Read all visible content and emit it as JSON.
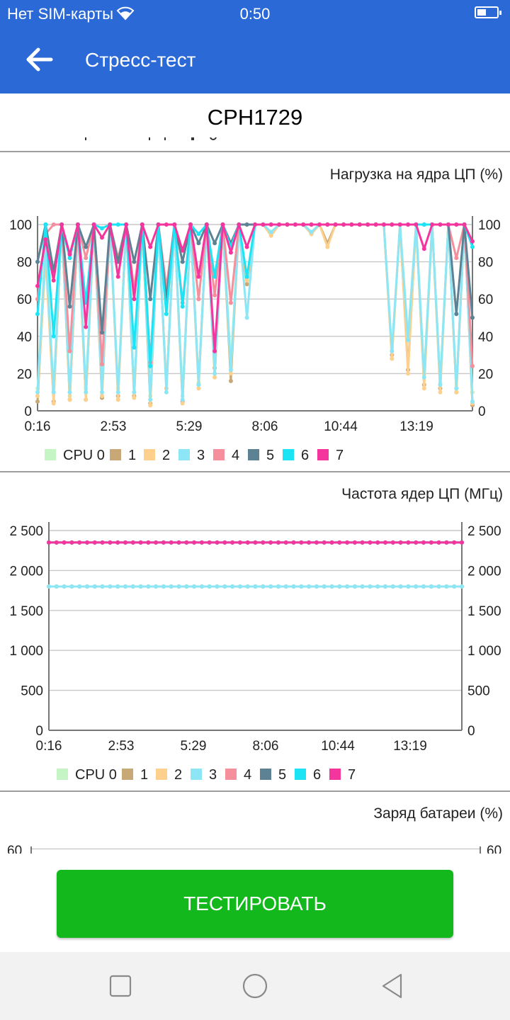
{
  "status_bar": {
    "carrier": "Нет SIM-карты",
    "time": "0:50"
  },
  "app_bar": {
    "title": "Стресс-тест"
  },
  "device": {
    "name": "CPH1729"
  },
  "legend_items": [
    "CPU 0",
    "1",
    "2",
    "3",
    "4",
    "5",
    "6",
    "7"
  ],
  "series_colors": [
    "#c5f5c5",
    "#c9a877",
    "#fdd08d",
    "#8de6f5",
    "#f58f9c",
    "#5c8294",
    "#1de4f5",
    "#f5359e"
  ],
  "charts": [
    {
      "title": "Нагрузка на ядра ЦП (%)",
      "chart_data": {
        "type": "line",
        "title": "Нагрузка на ядра ЦП (%)",
        "ylim": [
          0,
          100
        ],
        "y_ticks": [
          "0",
          "20",
          "40",
          "60",
          "80",
          "100"
        ],
        "x_ticks": [
          "0:16",
          "2:53",
          "5:29",
          "8:06",
          "10:44",
          "13:19"
        ],
        "series": [
          {
            "name": "CPU 0",
            "values": [
              12,
              90,
              10,
              100,
              8,
              100,
              12,
              100,
              10,
              100,
              12,
              100,
              10,
              100,
              8,
              100,
              12,
              100,
              8,
              100,
              15,
              100,
              18,
              100,
              25,
              100,
              72,
              100,
              100,
              95,
              100,
              100,
              100,
              100,
              95,
              100,
              100,
              100,
              100,
              100,
              100,
              100,
              100,
              100,
              28,
              100,
              40,
              100,
              20,
              100,
              15,
              100,
              12,
              100,
              10
            ]
          },
          {
            "name": "1",
            "values": [
              5,
              85,
              5,
              100,
              6,
              100,
              6,
              100,
              7,
              100,
              8,
              100,
              8,
              100,
              4,
              100,
              12,
              100,
              5,
              100,
              14,
              100,
              23,
              100,
              16,
              100,
              68,
              100,
              100,
              95,
              100,
              100,
              100,
              100,
              95,
              100,
              90,
              100,
              100,
              100,
              100,
              100,
              100,
              100,
              30,
              100,
              22,
              100,
              14,
              100,
              12,
              100,
              10,
              100,
              3
            ]
          },
          {
            "name": "2",
            "values": [
              8,
              82,
              4,
              100,
              6,
              100,
              6,
              100,
              8,
              100,
              6,
              100,
              7,
              100,
              3,
              100,
              12,
              100,
              4,
              100,
              12,
              100,
              18,
              100,
              20,
              100,
              70,
              100,
              100,
              94,
              100,
              100,
              100,
              100,
              95,
              100,
              88,
              100,
              100,
              100,
              100,
              100,
              100,
              100,
              28,
              100,
              20,
              100,
              12,
              100,
              10,
              100,
              10,
              100,
              4
            ]
          },
          {
            "name": "3",
            "values": [
              10,
              88,
              10,
              100,
              10,
              100,
              10,
              100,
              10,
              100,
              10,
              100,
              10,
              100,
              6,
              100,
              10,
              100,
              6,
              100,
              14,
              100,
              20,
              100,
              22,
              100,
              50,
              100,
              100,
              96,
              100,
              100,
              100,
              100,
              96,
              100,
              100,
              100,
              100,
              100,
              100,
              100,
              100,
              100,
              32,
              100,
              38,
              100,
              18,
              100,
              14,
              100,
              12,
              100,
              5
            ]
          },
          {
            "name": "4",
            "values": [
              60,
              95,
              100,
              100,
              32,
              100,
              82,
              100,
              25,
              100,
              82,
              100,
              65,
              100,
              26,
              100,
              66,
              100,
              58,
              100,
              60,
              100,
              62,
              100,
              58,
              100,
              100,
              100,
              100,
              100,
              100,
              100,
              100,
              100,
              100,
              100,
              100,
              100,
              100,
              100,
              100,
              100,
              100,
              100,
              100,
              100,
              100,
              100,
              100,
              100,
              100,
              100,
              82,
              100,
              24
            ]
          },
          {
            "name": "5",
            "values": [
              80,
              100,
              75,
              100,
              56,
              100,
              88,
              100,
              42,
              100,
              80,
              100,
              80,
              100,
              60,
              100,
              60,
              100,
              80,
              100,
              90,
              100,
              90,
              100,
              90,
              100,
              100,
              100,
              100,
              100,
              100,
              100,
              100,
              100,
              100,
              100,
              100,
              100,
              100,
              100,
              100,
              100,
              100,
              100,
              100,
              100,
              100,
              100,
              100,
              100,
              100,
              100,
              52,
              100,
              50
            ]
          },
          {
            "name": "6",
            "values": [
              52,
              100,
              40,
              100,
              82,
              100,
              58,
              100,
              98,
              100,
              100,
              100,
              34,
              100,
              24,
              100,
              52,
              100,
              56,
              100,
              95,
              100,
              72,
              100,
              88,
              100,
              72,
              100,
              100,
              100,
              100,
              100,
              100,
              100,
              100,
              100,
              100,
              100,
              100,
              100,
              100,
              100,
              100,
              100,
              100,
              100,
              100,
              100,
              100,
              100,
              100,
              100,
              100,
              100,
              88
            ]
          },
          {
            "name": "7",
            "values": [
              67,
              92,
              70,
              100,
              84,
              100,
              45,
              100,
              93,
              100,
              72,
              100,
              60,
              100,
              88,
              100,
              100,
              100,
              86,
              100,
              72,
              100,
              32,
              100,
              85,
              100,
              88,
              100,
              100,
              100,
              100,
              100,
              100,
              100,
              100,
              100,
              100,
              100,
              100,
              100,
              100,
              100,
              100,
              100,
              100,
              100,
              100,
              100,
              87,
              100,
              100,
              100,
              100,
              100,
              91
            ]
          }
        ]
      }
    },
    {
      "title": "Частота ядер ЦП (МГц)",
      "chart_data": {
        "type": "line",
        "title": "Частота ядер ЦП (МГц)",
        "ylim": [
          0,
          2500
        ],
        "y_ticks": [
          "0",
          "500",
          "1 000",
          "1 500",
          "2 000",
          "2 500"
        ],
        "x_ticks": [
          "0:16",
          "2:53",
          "5:29",
          "8:06",
          "10:44",
          "13:19"
        ],
        "series": [
          {
            "name": "CPU 0",
            "constant": 1800
          },
          {
            "name": "1",
            "constant": 1800
          },
          {
            "name": "2",
            "constant": 1800
          },
          {
            "name": "3",
            "constant": 1800
          },
          {
            "name": "4",
            "constant": 2350
          },
          {
            "name": "5",
            "constant": 2350
          },
          {
            "name": "6",
            "constant": 2350
          },
          {
            "name": "7",
            "constant": 2350
          }
        ]
      }
    },
    {
      "title": "Заряд батареи (%)",
      "visible_tick": "60"
    }
  ],
  "button": {
    "label": "ТЕСТИРОВАТЬ"
  },
  "nav": {
    "recent": "square-icon",
    "home": "circle-icon",
    "back": "triangle-back-icon"
  }
}
